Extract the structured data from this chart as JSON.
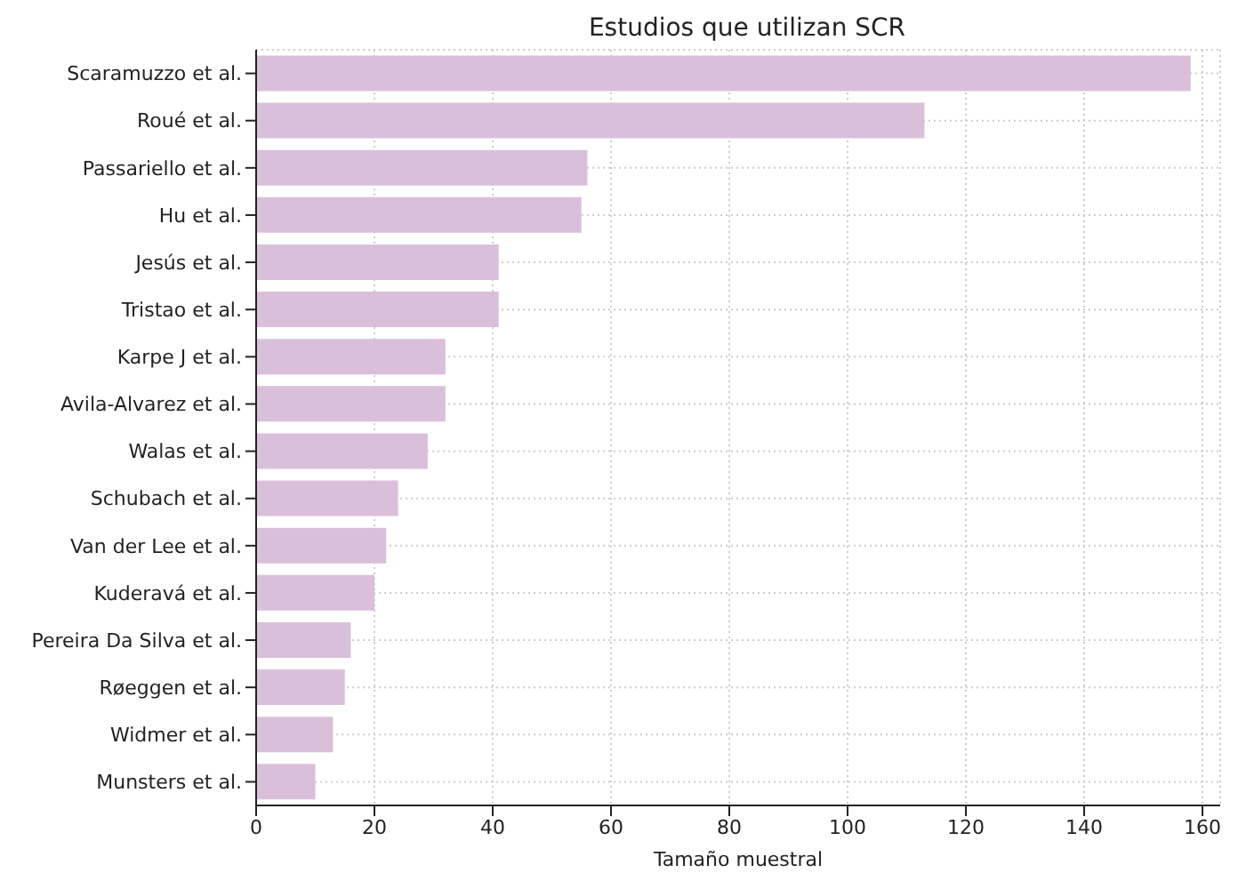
{
  "chart_data": {
    "type": "bar",
    "orientation": "horizontal",
    "title": "Estudios que utilizan SCR",
    "xlabel": "Tamaño muestral",
    "categories": [
      "Scaramuzzo et al.",
      "Roué et al.",
      "Passariello et al.",
      "Hu et al.",
      "Jesús et al.",
      "Tristao et al.",
      "Karpe J et al.",
      "Avila-Alvarez et al.",
      "Walas et al.",
      "Schubach et al.",
      "Van der Lee et al.",
      "Kuderavá et al.",
      "Pereira Da Silva et al.",
      "Røeggen et al.",
      "Widmer et al.",
      "Munsters et al."
    ],
    "values": [
      158,
      113,
      56,
      55,
      41,
      41,
      32,
      32,
      29,
      24,
      22,
      20,
      16,
      15,
      13,
      10
    ],
    "color": "#d8bcd8",
    "xlim": [
      0,
      163
    ],
    "xticks": [
      0,
      20,
      40,
      60,
      80,
      100,
      120,
      140,
      160
    ],
    "grid": true,
    "legend": false
  }
}
